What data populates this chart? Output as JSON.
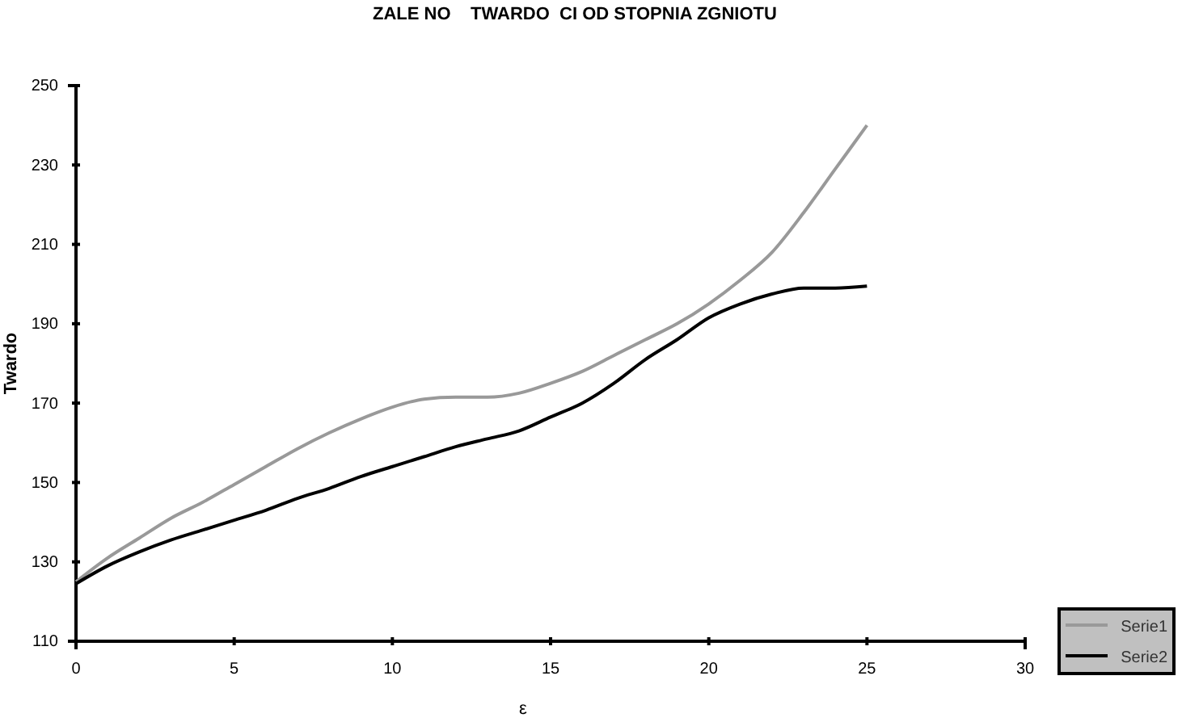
{
  "chart_data": {
    "type": "line",
    "title": "ZALE NO    TWARDO  CI OD STOPNIA ZGNIOTU",
    "xlabel": "ε",
    "ylabel": "Twardo",
    "xlim": [
      0,
      30
    ],
    "xticks": [
      0,
      5,
      10,
      15,
      20,
      25,
      30
    ],
    "ylim": [
      110,
      250
    ],
    "yticks": [
      110,
      130,
      150,
      170,
      190,
      210,
      230,
      250
    ],
    "grid": false,
    "legend": "bottom right",
    "marker": "none",
    "line_style": "solid",
    "series": [
      {
        "name": "Serie1",
        "color": "#999999",
        "x": [
          0,
          1,
          2,
          3,
          4,
          5,
          6,
          7,
          8,
          9,
          10,
          11,
          12,
          13,
          14,
          15,
          16,
          17,
          18,
          19,
          20,
          21,
          22,
          23,
          24,
          25
        ],
        "values": [
          125,
          131,
          136,
          141,
          145,
          149.5,
          154,
          158.5,
          162.5,
          166,
          169,
          171,
          171.5,
          171.5,
          172.5,
          175,
          178,
          182,
          186,
          190,
          195,
          201,
          208,
          218,
          229,
          240
        ]
      },
      {
        "name": "Serie2",
        "color": "#000000",
        "x": [
          0,
          1,
          2,
          3,
          4,
          5,
          6,
          7,
          8,
          9,
          10,
          11,
          12,
          13,
          14,
          15,
          16,
          17,
          18,
          19,
          20,
          21,
          22,
          23,
          24,
          25
        ],
        "values": [
          124.5,
          129,
          132.5,
          135.5,
          138,
          140.5,
          143,
          146,
          148.5,
          151.5,
          154,
          156.5,
          159,
          161,
          163,
          166.5,
          170,
          175,
          181,
          186,
          191.5,
          195,
          197.5,
          199,
          199,
          199.5
        ]
      }
    ]
  }
}
